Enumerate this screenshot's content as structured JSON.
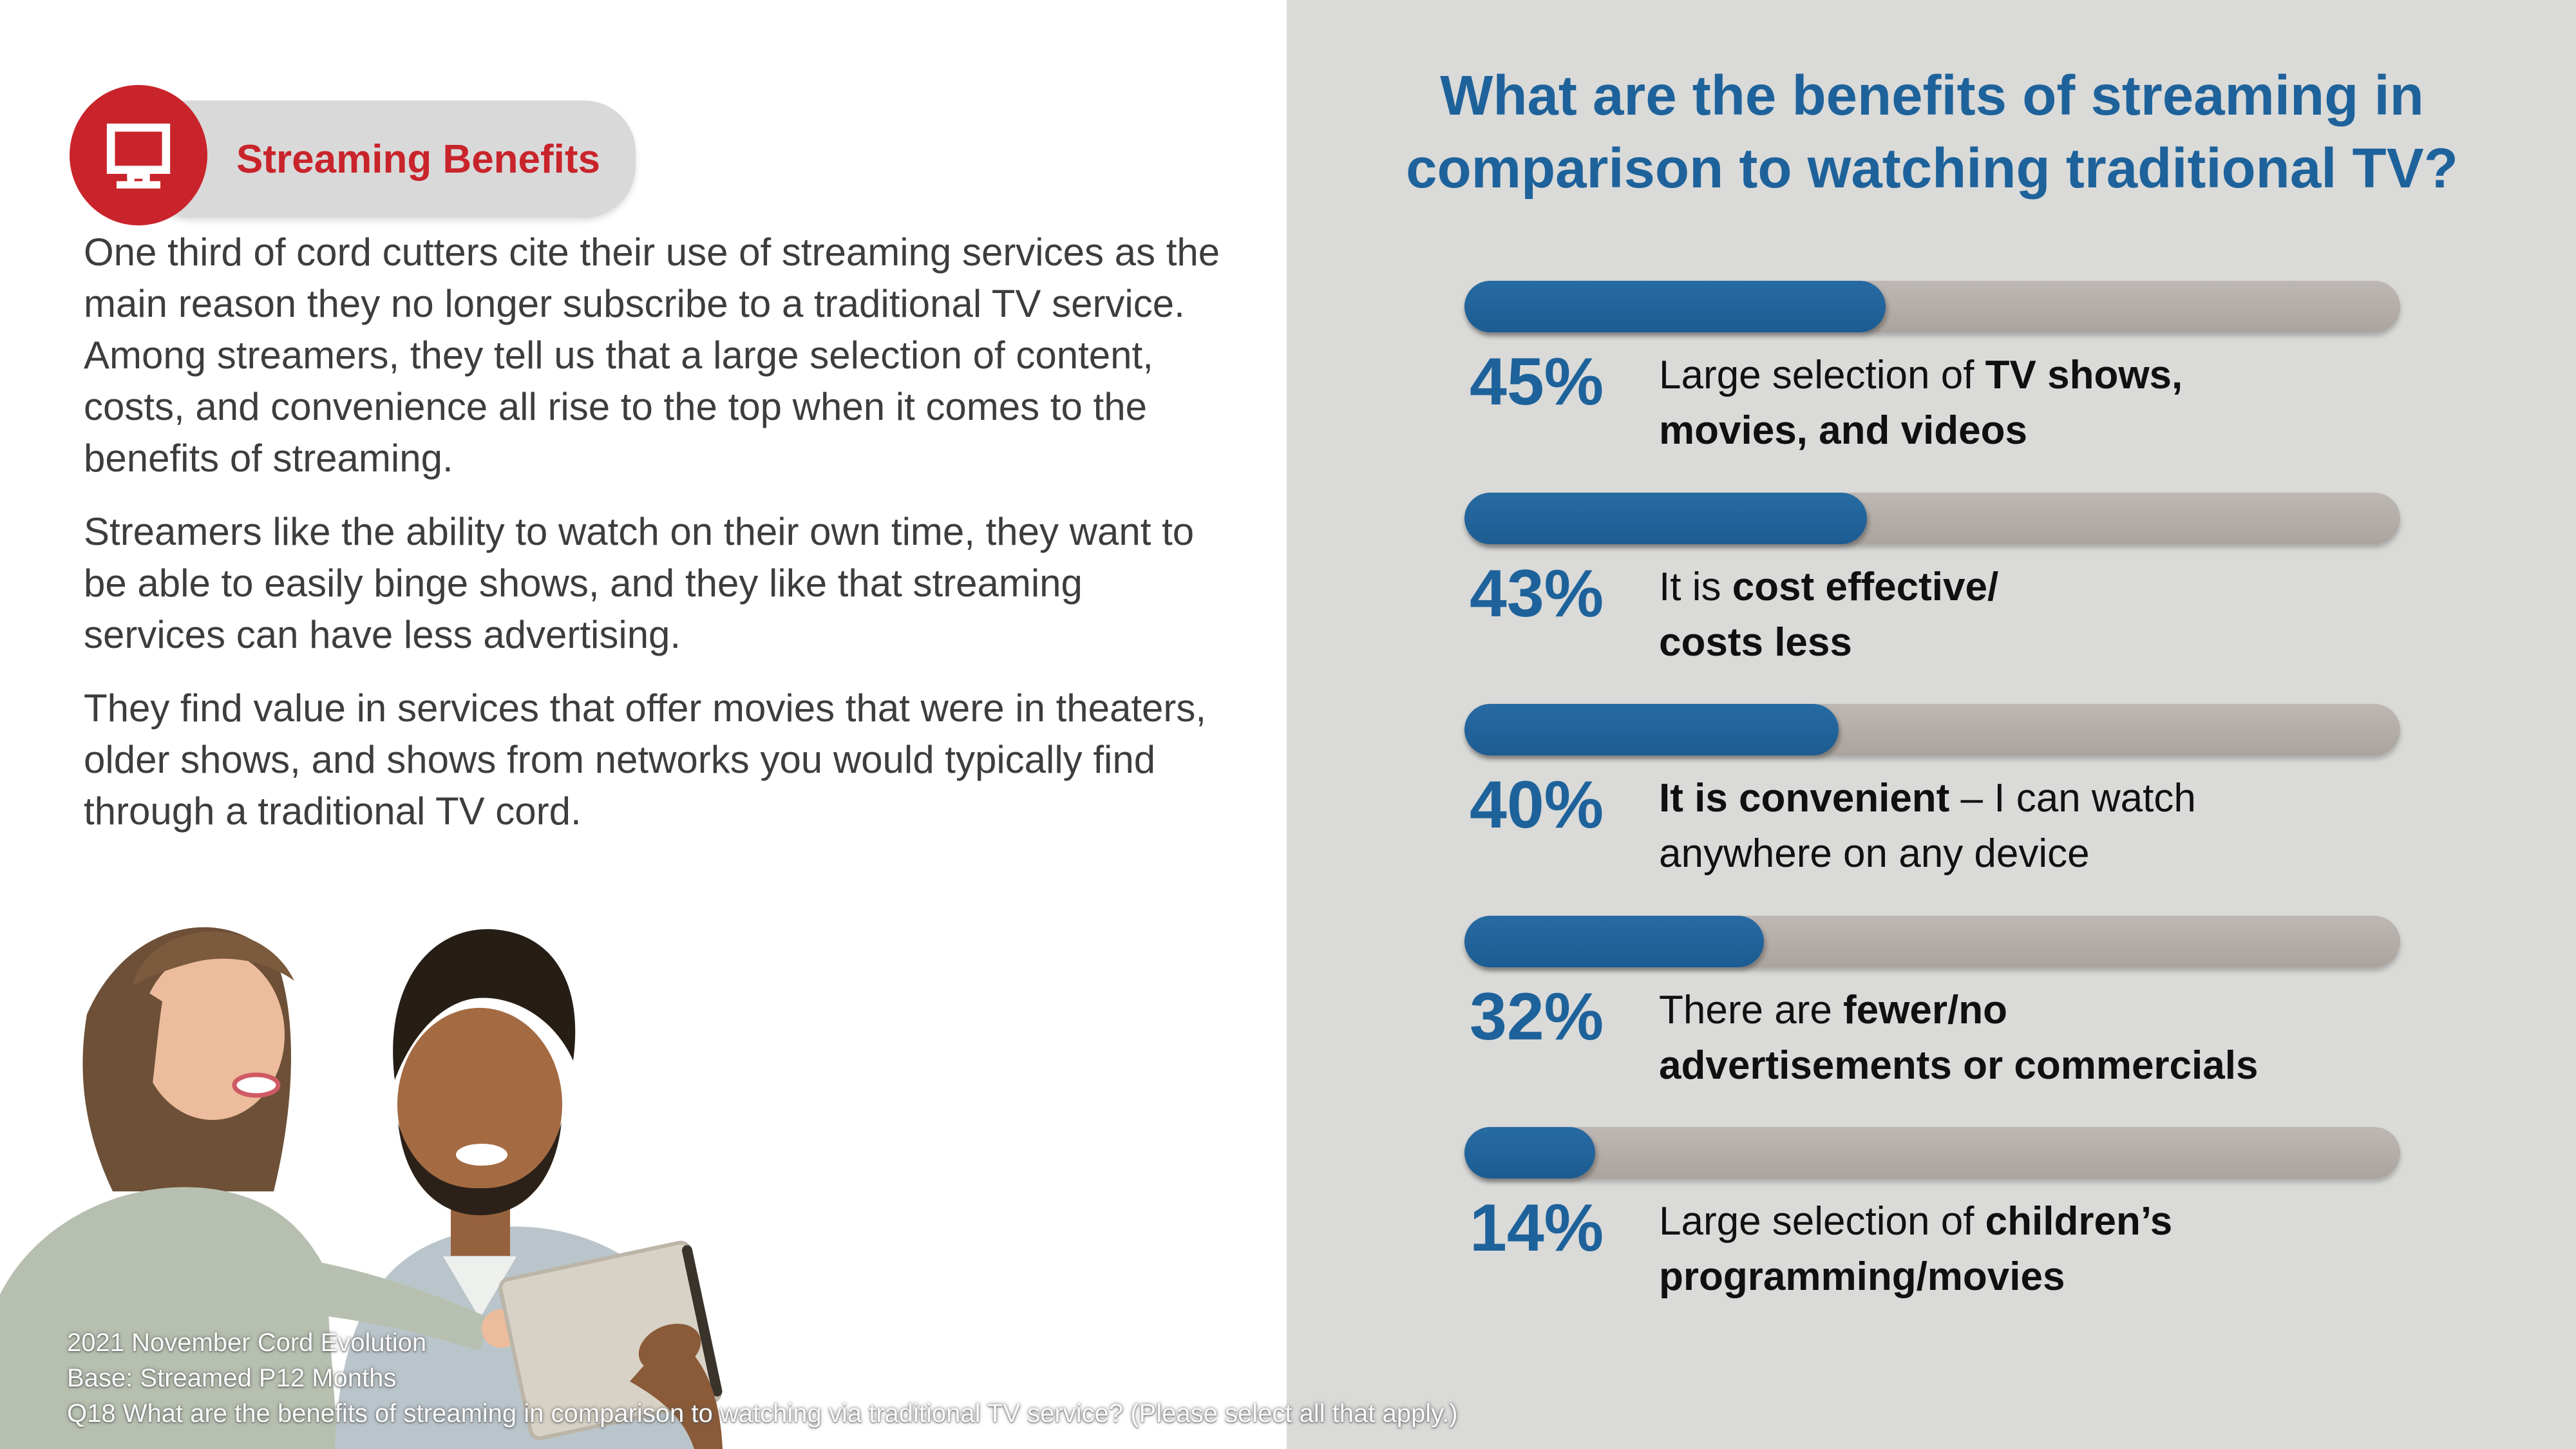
{
  "header": {
    "title": "Streaming Benefits",
    "icon": "tv-icon"
  },
  "paragraphs": [
    "One third of cord cutters cite their use of streaming services as the main reason they no longer subscribe to a traditional TV service.  Among streamers, they tell us that a large selection of content, costs, and convenience all rise to the top when it comes to the benefits of streaming.",
    "Streamers like the ability to watch on their own time, they want to be able to easily binge shows, and they like that streaming services can have less advertising.",
    "They find value in services that offer movies that were in theaters, older shows, and shows from networks you would typically find through a traditional TV cord."
  ],
  "footer": {
    "lines": [
      "2021 November Cord Evolution",
      "Base: Streamed P12 Months",
      "Q18 What are the benefits of streaming in comparison to watching via traditional TV service? (Please select all that apply.)"
    ]
  },
  "chart": {
    "title": "What are the benefits of streaming in\ncomparison to watching traditional TV?",
    "rows": [
      {
        "pct": "45%",
        "value": 45,
        "lines": [
          [
            {
              "t": "Large selection of ",
              "b": 0
            },
            {
              "t": "TV shows,",
              "b": 1
            }
          ],
          [
            {
              "t": "movies, and videos",
              "b": 1
            }
          ]
        ]
      },
      {
        "pct": "43%",
        "value": 43,
        "lines": [
          [
            {
              "t": "It is ",
              "b": 0
            },
            {
              "t": "cost effective/",
              "b": 1
            }
          ],
          [
            {
              "t": "costs less",
              "b": 1
            }
          ]
        ]
      },
      {
        "pct": "40%",
        "value": 40,
        "lines": [
          [
            {
              "t": "It is convenient",
              "b": 1
            },
            {
              "t": " – I can watch",
              "b": 0
            }
          ],
          [
            {
              "t": "anywhere on any device",
              "b": 0
            }
          ]
        ]
      },
      {
        "pct": "32%",
        "value": 32,
        "lines": [
          [
            {
              "t": "There are ",
              "b": 0
            },
            {
              "t": "fewer/no",
              "b": 1
            }
          ],
          [
            {
              "t": "advertisements or commercials",
              "b": 1
            }
          ]
        ]
      },
      {
        "pct": "14%",
        "value": 14,
        "lines": [
          [
            {
              "t": "Large selection of ",
              "b": 0
            },
            {
              "t": "children’s",
              "b": 1
            }
          ],
          [
            {
              "t": "programming/movies",
              "b": 1
            }
          ]
        ]
      }
    ]
  },
  "chart_data": {
    "type": "bar",
    "orientation": "horizontal",
    "title": "What are the benefits of streaming in comparison to watching traditional TV?",
    "categories": [
      "Large selection of TV shows, movies, and videos",
      "It is cost effective/costs less",
      "It is convenient – I can watch anywhere on any device",
      "There are fewer/no advertisements or commercials",
      "Large selection of children’s programming/movies"
    ],
    "values": [
      45,
      43,
      40,
      32,
      14
    ],
    "value_labels": [
      "45%",
      "43%",
      "40%",
      "32%",
      "14%"
    ],
    "unit": "%",
    "xlim": [
      0,
      100
    ],
    "grid": false,
    "legend": null,
    "bar_color": "#1E629B",
    "track_color": "#B5AFAB"
  },
  "colors": {
    "accent_blue": "#1E629B",
    "accent_red": "#C9242B",
    "panel_gray": "#DADAD8",
    "track_gray": "#B5AFAB",
    "body_text": "#3D3D3D"
  }
}
